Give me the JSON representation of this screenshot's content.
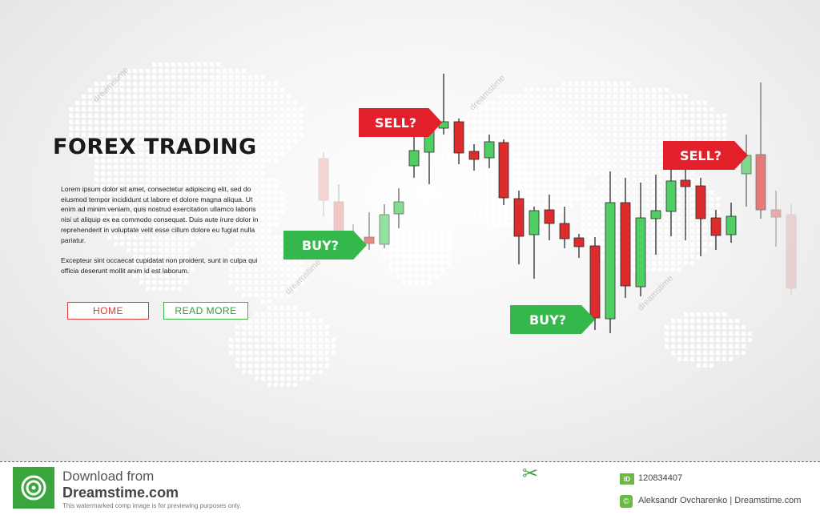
{
  "hero": {
    "title": "FOREX TRADING",
    "paragraph1": "Lorem ipsum dolor sit amet, consectetur adipiscing elit, sed do eiusmod tempor incididunt ut labore et dolore magna aliqua. Ut enim ad minim veniam, quis nostrud exercitation ullamco laboris nisi ut aliquip ex ea commodo consequat. Duis aute irure dolor in reprehenderit in voluptate velit esse cillum dolore eu fugiat nulla pariatur.",
    "paragraph2": "Excepteur sint occaecat cupidatat non proident, sunt in culpa qui officia deserunt mollit anim id est laborum.",
    "home_label": "HOME",
    "read_more_label": "READ MORE"
  },
  "tags": {
    "sell1": "SELL?",
    "buy1": "BUY?",
    "buy2": "BUY?",
    "sell2": "SELL?"
  },
  "watermark": {
    "text": "dreamstime"
  },
  "footer": {
    "download_label": "Download from",
    "site": "Dreamstime.com",
    "notice": "This watermarked comp image is for previewing purposes only.",
    "id_label": "ID",
    "id_value": "120834407",
    "author": "Aleksandr Ovcharenko | Dreamstime.com"
  },
  "colors": {
    "red": "#e2202a",
    "green": "#35b84b",
    "candle_red": "#dd2c2c",
    "candle_green": "#4fcf63"
  },
  "icons": {
    "logo": "dreamstime-spiral-icon",
    "scissors": "scissors-icon",
    "author": "copyright-icon"
  }
}
